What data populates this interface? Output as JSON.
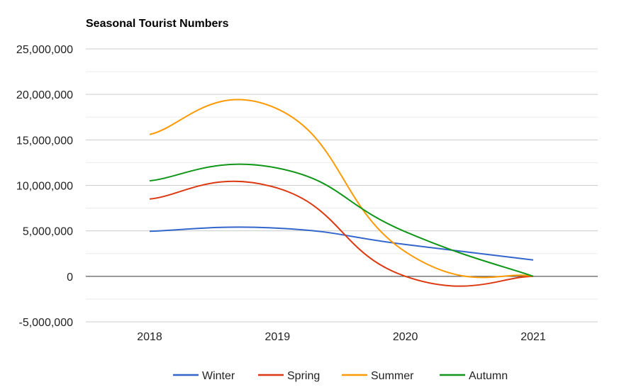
{
  "chart_data": {
    "type": "line",
    "title": "Seasonal Tourist Numbers",
    "xlabel": "",
    "ylabel": "",
    "categories": [
      "2018",
      "2019",
      "2020",
      "2021"
    ],
    "ylim": [
      -5000000,
      25000000
    ],
    "y_ticks": [
      -5000000,
      0,
      5000000,
      10000000,
      15000000,
      20000000,
      25000000
    ],
    "y_tick_labels": [
      "-5,000,000",
      "0",
      "5,000,000",
      "10,000,000",
      "15,000,000",
      "20,000,000",
      "25,000,000"
    ],
    "grid": true,
    "legend_position": "bottom",
    "curve": "smooth",
    "series": [
      {
        "name": "Winter",
        "color": "#3366cc",
        "values": [
          4950000,
          5300000,
          3500000,
          1800000
        ]
      },
      {
        "name": "Spring",
        "color": "#dc3912",
        "values": [
          8500000,
          9700000,
          0,
          0
        ]
      },
      {
        "name": "Summer",
        "color": "#ff9900",
        "values": [
          15600000,
          18400000,
          2700000,
          0
        ]
      },
      {
        "name": "Autumn",
        "color": "#109618",
        "values": [
          10500000,
          11900000,
          4900000,
          0
        ]
      }
    ]
  }
}
